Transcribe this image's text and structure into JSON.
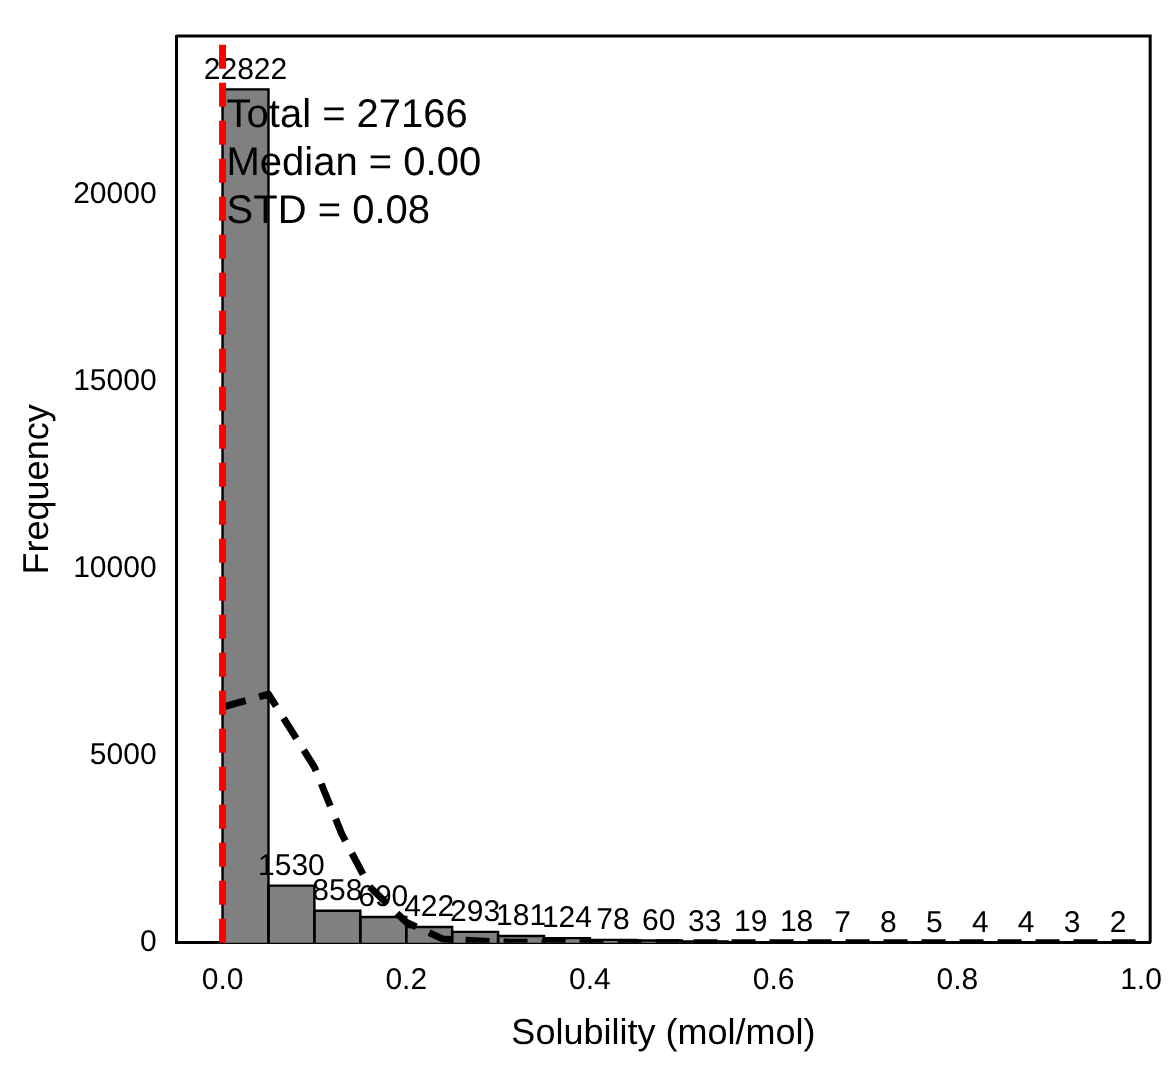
{
  "chart_data": {
    "type": "histogram",
    "xlabel": "Solubility (mol/mol)",
    "ylabel": "Frequency",
    "bins": [
      0,
      0.05,
      0.1,
      0.15,
      0.2,
      0.25,
      0.3,
      0.35,
      0.4,
      0.45,
      0.5,
      0.55,
      0.6,
      0.65,
      0.7,
      0.75,
      0.8,
      0.85,
      0.9,
      0.95,
      1.0
    ],
    "values": [
      22822,
      1530,
      858,
      690,
      422,
      293,
      181,
      124,
      78,
      60,
      33,
      19,
      18,
      7,
      8,
      5,
      4,
      4,
      3,
      2
    ],
    "color": "#808080",
    "value_labels": [
      "22822",
      "1530",
      "858",
      "690",
      "422",
      "293",
      "181",
      "124",
      "78",
      "60",
      "33",
      "19",
      "18",
      "7",
      "8",
      "5",
      "4",
      "4",
      "3",
      "2"
    ],
    "series": [
      {
        "type": "line",
        "color": "#000000",
        "line_style": "dashed",
        "x": [
          0,
          0.05,
          0.1,
          0.13,
          0.16,
          0.2,
          0.24,
          0.3,
          0.4,
          0.5,
          0.6,
          0.7,
          0.8,
          0.9,
          1.0
        ],
        "values": [
          6300,
          6650,
          4700,
          2900,
          1500,
          550,
          100,
          20,
          0,
          0,
          0,
          0,
          0,
          0,
          0
        ]
      }
    ],
    "ref_lines": [
      {
        "axis": "x",
        "value": 0,
        "color": "#ff0000",
        "line_style": "dashed"
      }
    ],
    "annotations": [
      "Total = 27166",
      "Median = 0.00",
      "STD = 0.08"
    ],
    "xlim": [
      -0.05,
      1.01
    ],
    "ylim": [
      0,
      24250
    ],
    "xticks": [
      {
        "value": 0,
        "label": "0.0"
      },
      {
        "value": 0.2,
        "label": "0.2"
      },
      {
        "value": 0.4,
        "label": "0.4"
      },
      {
        "value": 0.6,
        "label": "0.6"
      },
      {
        "value": 0.8,
        "label": "0.8"
      },
      {
        "value": 1.0,
        "label": "1.0"
      }
    ],
    "yticks": [
      0,
      5000,
      10000,
      15000,
      20000
    ],
    "grid": false,
    "legend": false
  }
}
